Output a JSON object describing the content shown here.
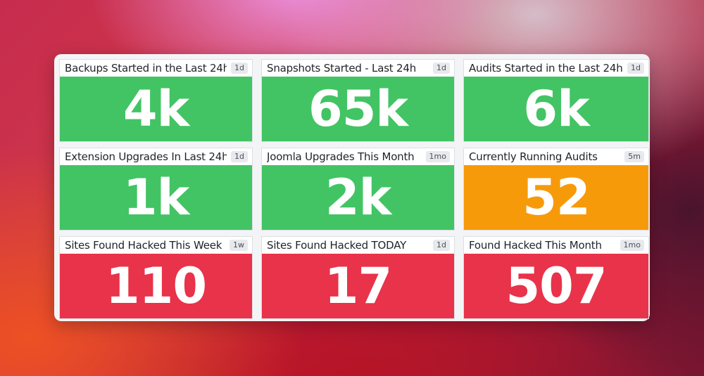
{
  "colors": {
    "ok": "#42c464",
    "warning": "#f79a0a",
    "critical": "#e8334a"
  },
  "widgets": [
    {
      "title": "Backups Started in the Last 24h",
      "badge": "1d",
      "value": "4k",
      "status": "ok"
    },
    {
      "title": "Snapshots Started - Last 24h",
      "badge": "1d",
      "value": "65k",
      "status": "ok"
    },
    {
      "title": "Audits Started in the Last 24h",
      "badge": "1d",
      "value": "6k",
      "status": "ok"
    },
    {
      "title": "Extension Upgrades In Last 24h",
      "badge": "1d",
      "value": "1k",
      "status": "ok"
    },
    {
      "title": "Joomla Upgrades This Month",
      "badge": "1mo",
      "value": "2k",
      "status": "ok"
    },
    {
      "title": "Currently Running Audits",
      "badge": "5m",
      "value": "52",
      "status": "warning"
    },
    {
      "title": "Sites Found Hacked This Week",
      "badge": "1w",
      "value": "110",
      "status": "critical"
    },
    {
      "title": "Sites Found Hacked TODAY",
      "badge": "1d",
      "value": "17",
      "status": "critical"
    },
    {
      "title": "Found Hacked This Month",
      "badge": "1mo",
      "value": "507",
      "status": "critical"
    }
  ]
}
